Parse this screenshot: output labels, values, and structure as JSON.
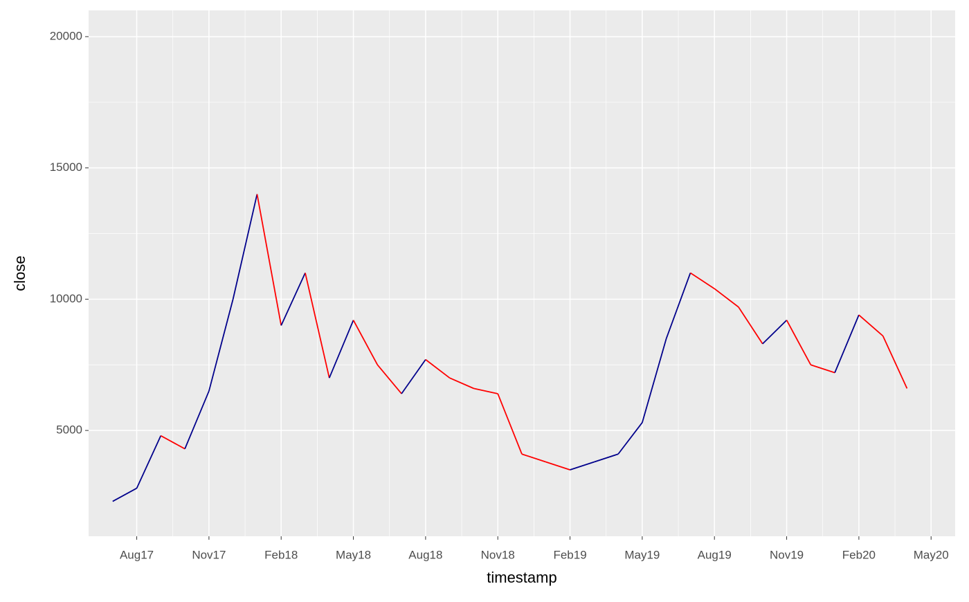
{
  "chart_data": {
    "type": "line",
    "x_label": "timestamp",
    "y_label": "close",
    "x": [
      "2017-07",
      "2017-08",
      "2017-09",
      "2017-10",
      "2017-11",
      "2017-12",
      "2018-01",
      "2018-02",
      "2018-03",
      "2018-04",
      "2018-05",
      "2018-06",
      "2018-07",
      "2018-08",
      "2018-09",
      "2018-10",
      "2018-11",
      "2018-12",
      "2019-01",
      "2019-02",
      "2019-03",
      "2019-04",
      "2019-05",
      "2019-06",
      "2019-07",
      "2019-08",
      "2019-09",
      "2019-10",
      "2019-11",
      "2019-12",
      "2020-01",
      "2020-02",
      "2020-03",
      "2020-04"
    ],
    "values": [
      2300,
      2800,
      4800,
      4300,
      6500,
      10000,
      14000,
      9000,
      11000,
      7000,
      9200,
      7500,
      6400,
      7700,
      7000,
      6600,
      6400,
      4100,
      3800,
      3500,
      3800,
      4100,
      5300,
      8500,
      11000,
      10400,
      9700,
      8300,
      9200,
      7500,
      7200,
      9400,
      8600,
      6600
    ],
    "up_color": "#00008b",
    "down_color": "#ff0000",
    "xlim": [
      "2017-06",
      "2020-06"
    ],
    "xticks": [
      {
        "value": "2017-08",
        "label": "Aug17"
      },
      {
        "value": "2017-11",
        "label": "Nov17"
      },
      {
        "value": "2018-02",
        "label": "Feb18"
      },
      {
        "value": "2018-05",
        "label": "May18"
      },
      {
        "value": "2018-08",
        "label": "Aug18"
      },
      {
        "value": "2018-11",
        "label": "Nov18"
      },
      {
        "value": "2019-02",
        "label": "Feb19"
      },
      {
        "value": "2019-05",
        "label": "May19"
      },
      {
        "value": "2019-08",
        "label": "Aug19"
      },
      {
        "value": "2019-11",
        "label": "Nov19"
      },
      {
        "value": "2020-02",
        "label": "Feb20"
      },
      {
        "value": "2020-05",
        "label": "May20"
      }
    ],
    "ylim": [
      970,
      21000
    ],
    "yticks": [
      5000,
      10000,
      15000,
      20000
    ],
    "grid": true
  }
}
